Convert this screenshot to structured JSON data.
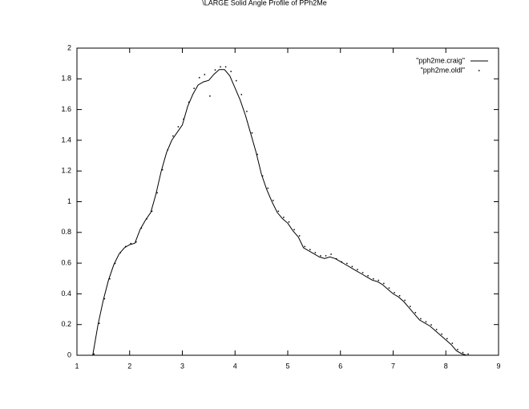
{
  "chart_data": {
    "type": "line",
    "title": "\\LARGE Solid Angle Profile of PPh2Me",
    "x": [
      1.3,
      1.4,
      1.5,
      1.6,
      1.7,
      1.8,
      1.9,
      2.0,
      2.1,
      2.2,
      2.3,
      2.4,
      2.5,
      2.6,
      2.7,
      2.8,
      2.9,
      3.0,
      3.1,
      3.2,
      3.3,
      3.4,
      3.5,
      3.6,
      3.7,
      3.8,
      3.9,
      4.0,
      4.1,
      4.2,
      4.3,
      4.4,
      4.5,
      4.6,
      4.7,
      4.8,
      4.9,
      5.0,
      5.1,
      5.2,
      5.3,
      5.4,
      5.5,
      5.6,
      5.7,
      5.8,
      5.9,
      6.0,
      6.1,
      6.2,
      6.3,
      6.4,
      6.5,
      6.6,
      6.7,
      6.8,
      6.9,
      7.0,
      7.1,
      7.2,
      7.3,
      7.4,
      7.5,
      7.6,
      7.7,
      7.8,
      7.9,
      8.0,
      8.1,
      8.2,
      8.3,
      8.4
    ],
    "series": [
      {
        "name": "\"pph2me.craig\"",
        "style": "line",
        "color": "#000000",
        "values": [
          0,
          0.2,
          0.36,
          0.49,
          0.59,
          0.66,
          0.7,
          0.72,
          0.73,
          0.82,
          0.88,
          0.93,
          1.05,
          1.2,
          1.32,
          1.4,
          1.45,
          1.5,
          1.62,
          1.7,
          1.76,
          1.78,
          1.79,
          1.83,
          1.86,
          1.86,
          1.82,
          1.74,
          1.66,
          1.56,
          1.44,
          1.32,
          1.18,
          1.08,
          1.0,
          0.93,
          0.89,
          0.86,
          0.81,
          0.77,
          0.7,
          0.68,
          0.66,
          0.64,
          0.63,
          0.64,
          0.63,
          0.61,
          0.59,
          0.57,
          0.55,
          0.53,
          0.51,
          0.49,
          0.48,
          0.46,
          0.43,
          0.4,
          0.38,
          0.35,
          0.31,
          0.27,
          0.23,
          0.21,
          0.19,
          0.16,
          0.13,
          0.1,
          0.07,
          0.03,
          0.01,
          0
        ]
      },
      {
        "name": "\"pph2me.oldl\"",
        "style": "points",
        "color": "#000000",
        "values": [
          0,
          0.2,
          0.36,
          0.49,
          0.59,
          0.66,
          0.7,
          0.72,
          0.73,
          0.82,
          0.88,
          0.93,
          1.05,
          1.2,
          1.33,
          1.42,
          1.48,
          1.53,
          1.64,
          1.73,
          1.8,
          1.82,
          1.68,
          1.85,
          1.87,
          1.87,
          1.84,
          1.78,
          1.69,
          1.58,
          1.44,
          1.3,
          1.16,
          1.08,
          1.0,
          0.93,
          0.89,
          0.86,
          0.81,
          0.77,
          0.7,
          0.68,
          0.66,
          0.64,
          0.64,
          0.65,
          0.62,
          0.6,
          0.59,
          0.57,
          0.55,
          0.53,
          0.51,
          0.49,
          0.48,
          0.46,
          0.43,
          0.4,
          0.38,
          0.35,
          0.31,
          0.27,
          0.23,
          0.21,
          0.19,
          0.16,
          0.13,
          0.1,
          0.07,
          0.03,
          0.01,
          0
        ]
      }
    ],
    "xlim": [
      1,
      9
    ],
    "xticks": [
      1,
      2,
      3,
      4,
      5,
      6,
      7,
      8,
      9
    ],
    "ylim": [
      0,
      2
    ],
    "yticks": [
      0,
      0.2,
      0.4,
      0.6,
      0.8,
      1,
      1.2,
      1.4,
      1.6,
      1.8,
      2
    ]
  }
}
